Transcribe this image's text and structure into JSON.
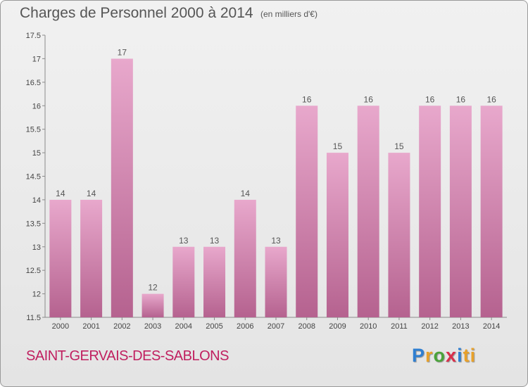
{
  "header": {
    "title": "Charges de Personnel 2000 à 2014",
    "subtitle": "(en milliers d'€)"
  },
  "footer": {
    "commune": "SAINT-GERVAIS-DES-SABLONS",
    "brand": "Proxiti"
  },
  "colors": {
    "bar_top": "#e8a8cc",
    "bar_bottom": "#b5628f",
    "commune_text": "#c01f5f"
  },
  "chart_data": {
    "type": "bar",
    "title": "Charges de Personnel 2000 à 2014",
    "subtitle": "(en milliers d'€)",
    "categories": [
      "2000",
      "2001",
      "2002",
      "2003",
      "2004",
      "2005",
      "2006",
      "2007",
      "2008",
      "2009",
      "2010",
      "2011",
      "2012",
      "2013",
      "2014"
    ],
    "values": [
      14,
      14,
      17,
      12,
      13,
      13,
      14,
      13,
      16,
      15,
      16,
      15,
      16,
      16,
      16
    ],
    "ylim": [
      11.5,
      17.5
    ],
    "yticks": [
      11.5,
      12,
      12.5,
      13,
      13.5,
      14,
      14.5,
      15,
      15.5,
      16,
      16.5,
      17,
      17.5
    ],
    "ytick_labels": [
      "11.5",
      "12",
      "12.5",
      "13",
      "13.5",
      "14",
      "14.5",
      "15",
      "15.5",
      "16",
      "16.5",
      "17",
      "17.5"
    ],
    "grid": false,
    "legend": "none"
  }
}
